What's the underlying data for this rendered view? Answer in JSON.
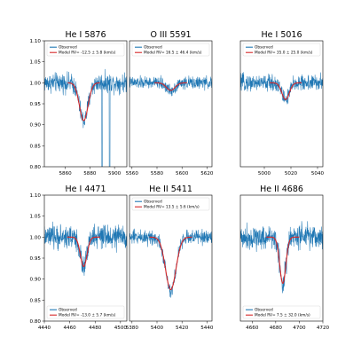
{
  "figure": {
    "colors": {
      "observed": "#1f77b4",
      "model": "#d62728"
    }
  },
  "chart_data": [
    {
      "type": "line",
      "title": "He I 5876",
      "xlim": [
        5843,
        5910
      ],
      "ylim": [
        0.8,
        1.1
      ],
      "xticks": [
        "5860",
        "5880",
        "5900"
      ],
      "yticks": [
        "0.80",
        "0.85",
        "0.90",
        "0.95",
        "1.00",
        "1.05",
        "1.10"
      ],
      "legend": {
        "position": "top-left",
        "observed": "Observed",
        "model": "Model  RV= -12.5 ± 5.8 (km/s)"
      },
      "line": {
        "center": 5875,
        "depth": 0.09,
        "width": 3.5,
        "noise": 0.014
      },
      "model_range": [
        5862,
        5888
      ],
      "dropouts": [
        5890,
        5896
      ]
    },
    {
      "type": "line",
      "title": "O III 5591",
      "xlim": [
        5558,
        5624
      ],
      "ylim": [
        0.8,
        1.1
      ],
      "xticks": [
        "5560",
        "5580",
        "5600",
        "5620"
      ],
      "yticks": [],
      "legend": {
        "position": "top-left",
        "observed": "Observed",
        "model": "Model  RV= 16.5 ± 46.4 (km/s)"
      },
      "line": {
        "center": 5591,
        "depth": 0.018,
        "width": 3.5,
        "noise": 0.009
      },
      "model_range": [
        5578,
        5604
      ],
      "dropouts": []
    },
    {
      "type": "line",
      "title": "He I 5016",
      "xlim": [
        4982,
        5044
      ],
      "ylim": [
        0.8,
        1.1
      ],
      "xticks": [
        "5000",
        "5020",
        "5040"
      ],
      "yticks": [],
      "legend": {
        "position": "top-left",
        "observed": "Observed",
        "model": "Model  RV= 35.0 ± 25.0 (km/s)"
      },
      "line": {
        "center": 5016,
        "depth": 0.04,
        "width": 2.8,
        "noise": 0.012
      },
      "model_range": [
        5004,
        5028
      ],
      "dropouts": []
    },
    {
      "type": "line",
      "title": "He I 4471",
      "xlim": [
        4440,
        4505
      ],
      "ylim": [
        0.8,
        1.1
      ],
      "xticks": [
        "4440",
        "4460",
        "4480",
        "4500"
      ],
      "yticks": [
        "0.80",
        "0.85",
        "0.90",
        "0.95",
        "1.00",
        "1.05",
        "1.10"
      ],
      "legend": {
        "position": "bottom-left",
        "observed": "Observed",
        "model": "Model  RV= -13.0 ± 5.7 (km/s)"
      },
      "line": {
        "center": 4471,
        "depth": 0.07,
        "width": 2.6,
        "noise": 0.017
      },
      "model_range": [
        4458,
        4484
      ],
      "dropouts": []
    },
    {
      "type": "line",
      "title": "He II 5411",
      "xlim": [
        5378,
        5444
      ],
      "ylim": [
        0.8,
        1.1
      ],
      "xticks": [
        "5380",
        "5400",
        "5420",
        "5440"
      ],
      "yticks": [],
      "legend": {
        "position": "top-left",
        "observed": "Observed",
        "model": "Model  RV= 13.5 ± 5.6 (km/s)"
      },
      "line": {
        "center": 5411,
        "depth": 0.125,
        "width": 4.2,
        "noise": 0.011
      },
      "model_range": [
        5394,
        5428
      ],
      "dropouts": []
    },
    {
      "type": "line",
      "title": "He II 4686",
      "xlim": [
        4650,
        4720
      ],
      "ylim": [
        0.8,
        1.1
      ],
      "xticks": [
        "4660",
        "4680",
        "4700",
        "4720"
      ],
      "yticks": [],
      "legend": {
        "position": "bottom-left",
        "observed": "Observed",
        "model": "Model  RV= 7.5 ± 32.0 (km/s)"
      },
      "line": {
        "center": 4686,
        "depth": 0.11,
        "width": 2.6,
        "noise": 0.018
      },
      "model_range": [
        4672,
        4700
      ],
      "dropouts": []
    }
  ]
}
